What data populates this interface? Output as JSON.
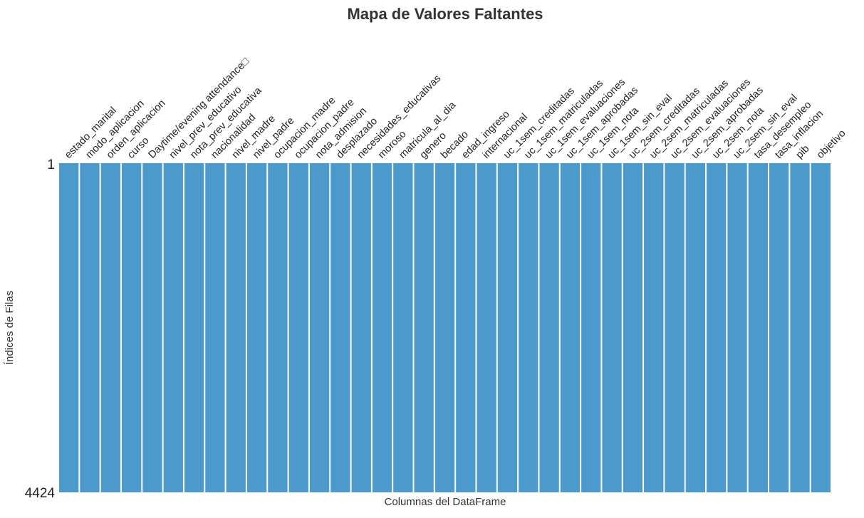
{
  "chart_data": {
    "type": "heatmap",
    "title": "Mapa de Valores Faltantes",
    "xlabel": "Columnas del DataFrame",
    "ylabel": "Índices de Filas",
    "y_tick_labels": [
      "1",
      "4424"
    ],
    "columns": [
      "estado_marital",
      "modo_aplicacion",
      "orden_aplicacion",
      "curso",
      "Daytime/evening attendance\t",
      "nivel_prev_educativo",
      "nota_prev_educativa",
      "nacionalidad",
      "nivel_madre",
      "nivel_padre",
      "ocupacion_madre",
      "ocupacion_padre",
      "nota_admision",
      "desplazado",
      "necesidades_educativas",
      "moroso",
      "matricula_al_dia",
      "genero",
      "becado",
      "edad_ingreso",
      "internacional",
      "uc_1sem_creditadas",
      "uc_1sem_matriculadas",
      "uc_1sem_evaluaciones",
      "uc_1sem_aprobadas",
      "uc_1sem_nota",
      "uc_1sem_sin_eval",
      "uc_2sem_creditadas",
      "uc_2sem_matriculadas",
      "uc_2sem_evaluaciones",
      "uc_2sem_aprobadas",
      "uc_2sem_nota",
      "uc_2sem_sin_eval",
      "tasa_desempleo",
      "tasa_inflacion",
      "pib",
      "objetivo"
    ],
    "row_count": 4424,
    "missing_fraction": [
      0,
      0,
      0,
      0,
      0,
      0,
      0,
      0,
      0,
      0,
      0,
      0,
      0,
      0,
      0,
      0,
      0,
      0,
      0,
      0,
      0,
      0,
      0,
      0,
      0,
      0,
      0,
      0,
      0,
      0,
      0,
      0,
      0,
      0,
      0,
      0,
      0
    ],
    "present_color": "#4c99cb",
    "missing_color": "#ffffff",
    "grid": false,
    "legend": "none"
  }
}
